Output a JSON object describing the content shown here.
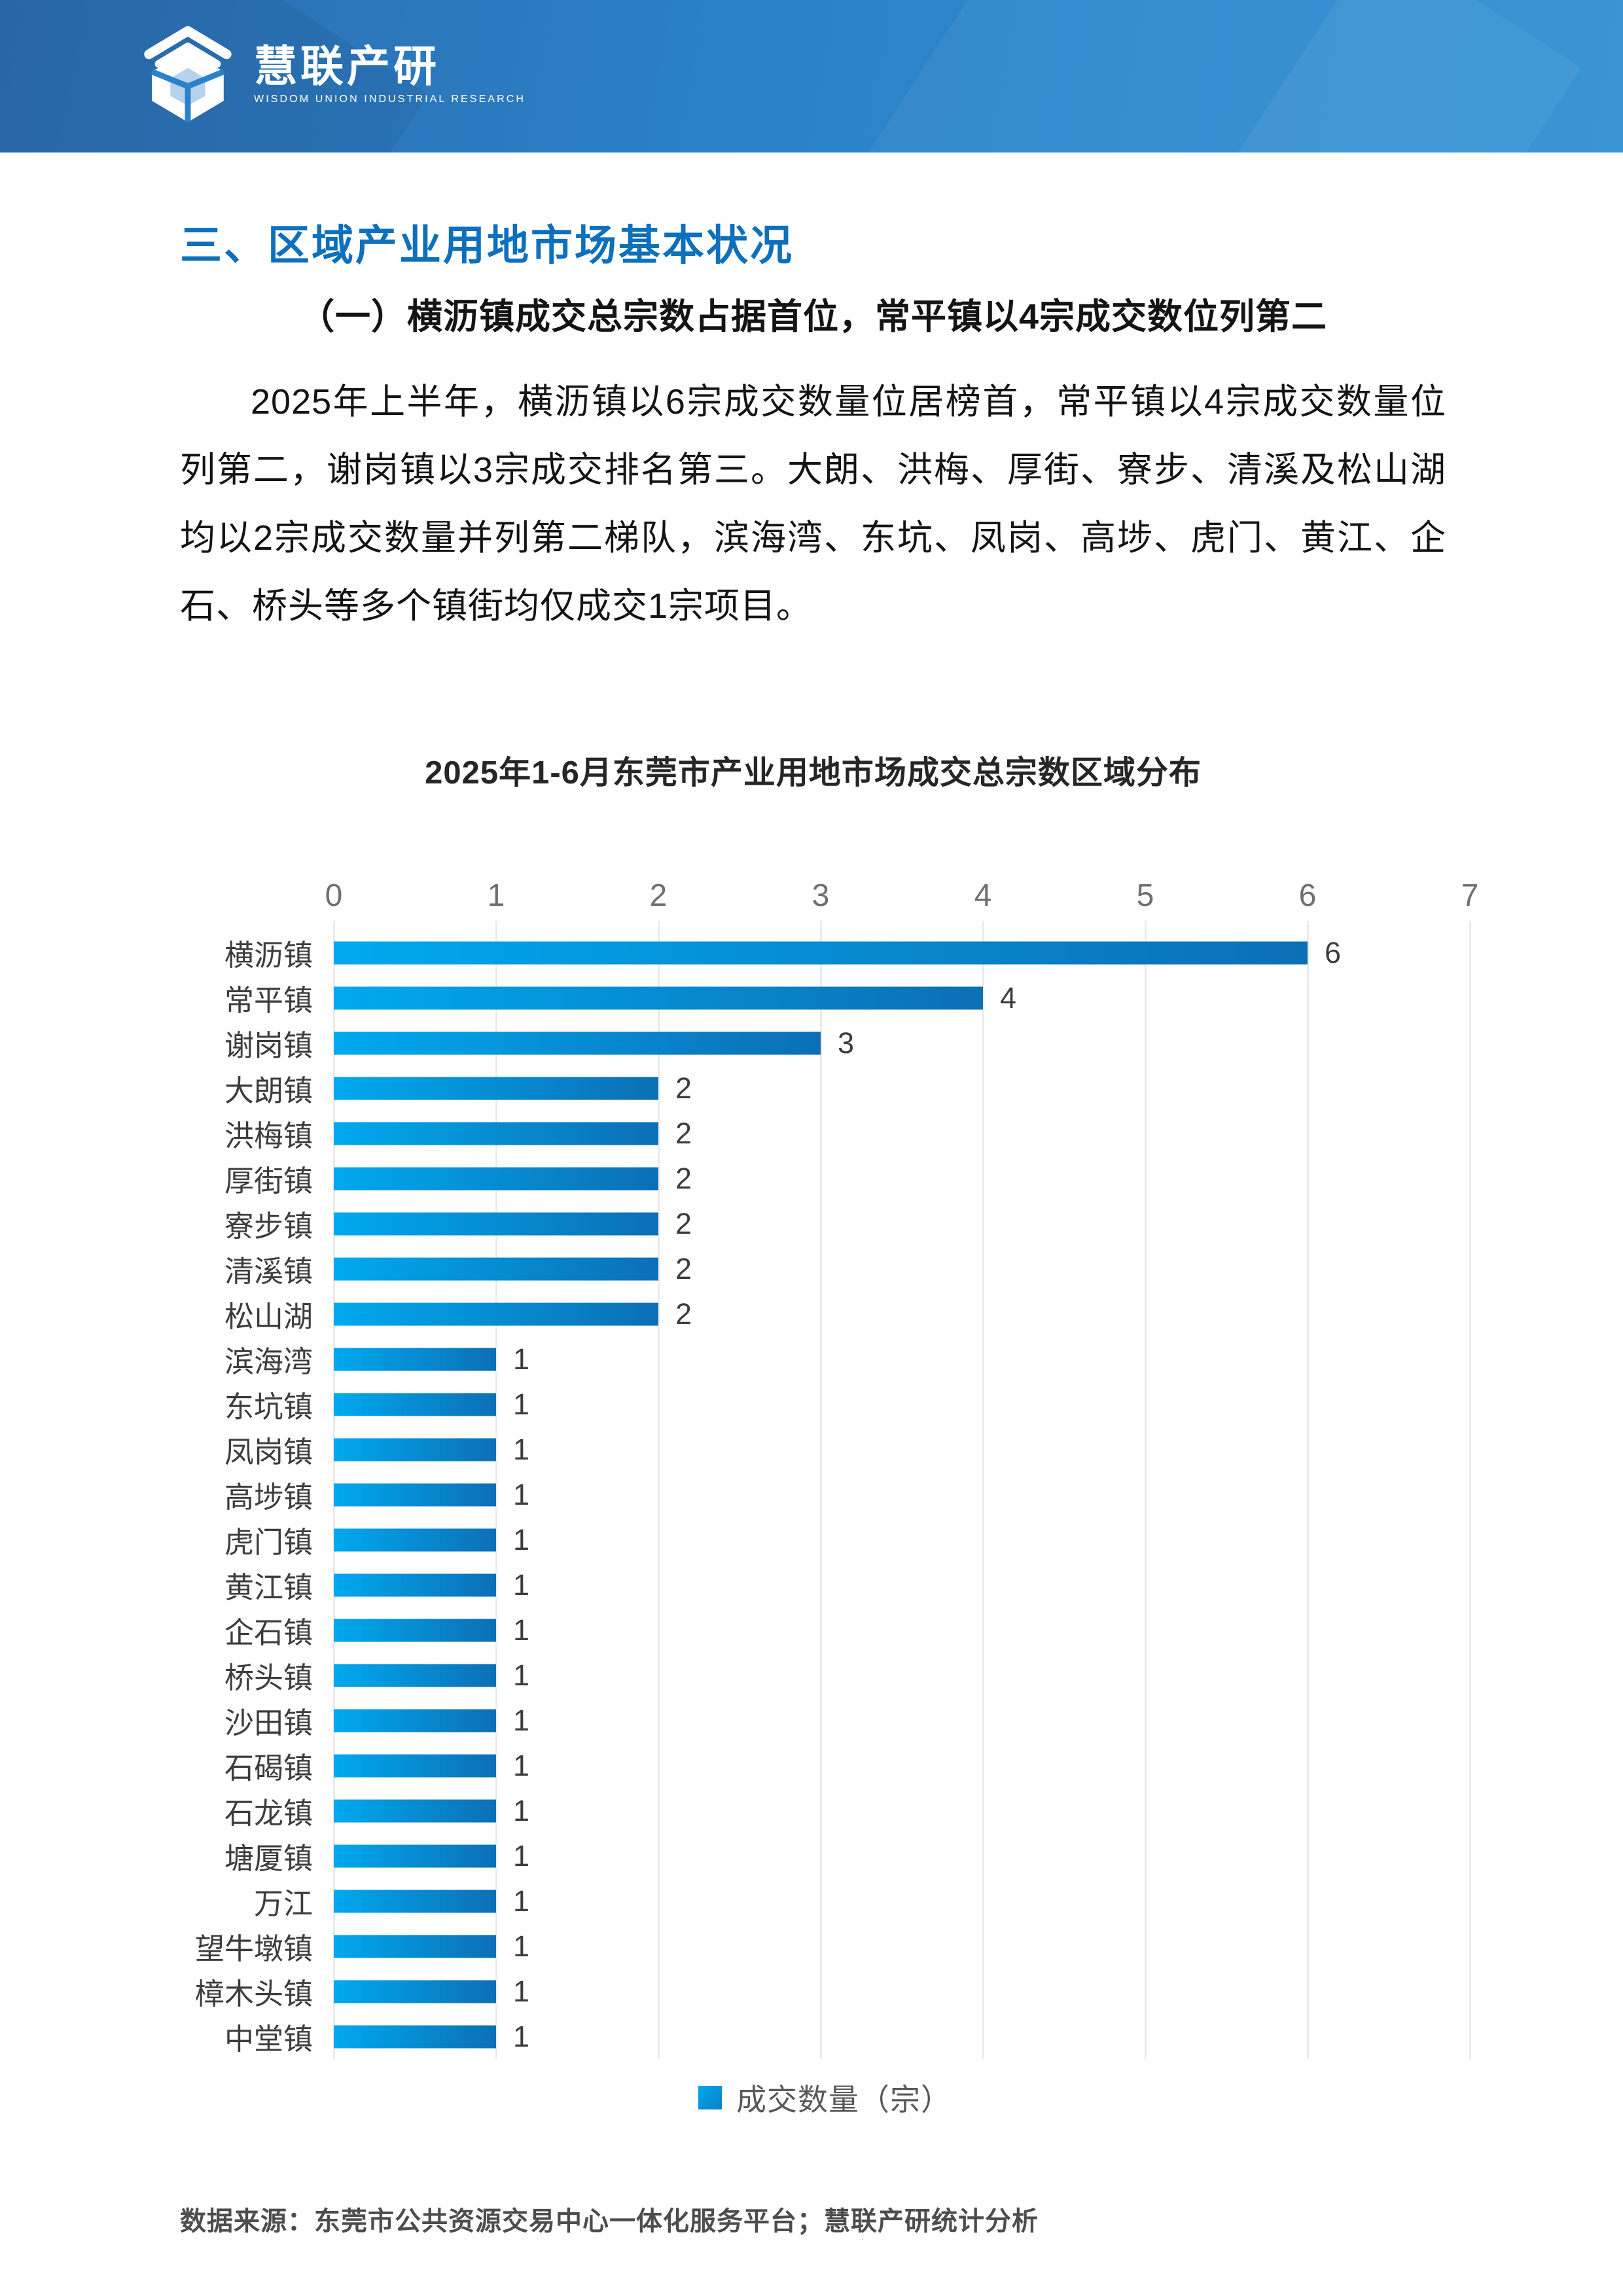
{
  "header": {
    "brand_name": "慧联产研",
    "brand_tagline": "WISDOM UNION INDUSTRIAL RESEARCH"
  },
  "section": {
    "title": "三、区域产业用地市场基本状况",
    "subtitle": "（一）横沥镇成交总宗数占据首位，常平镇以4宗成交数位列第二",
    "paragraph": "2025年上半年，横沥镇以6宗成交数量位居榜首，常平镇以4宗成交数量位列第二，谢岗镇以3宗成交排名第三。大朗、洪梅、厚街、寮步、清溪及松山湖均以2宗成交数量并列第二梯队，滨海湾、东坑、凤岗、高埗、虎门、黄江、企石、桥头等多个镇街均仅成交1宗项目。"
  },
  "chart_data": {
    "type": "bar",
    "orientation": "horizontal",
    "title": "2025年1-6月东莞市产业用地市场成交总宗数区域分布",
    "legend_label": "成交数量（宗）",
    "legend_position": "bottom",
    "grid": true,
    "xlim": [
      0,
      7
    ],
    "x_ticks": [
      0,
      1,
      2,
      3,
      4,
      5,
      6,
      7
    ],
    "categories": [
      "横沥镇",
      "常平镇",
      "谢岗镇",
      "大朗镇",
      "洪梅镇",
      "厚街镇",
      "寮步镇",
      "清溪镇",
      "松山湖",
      "滨海湾",
      "东坑镇",
      "凤岗镇",
      "高埗镇",
      "虎门镇",
      "黄江镇",
      "企石镇",
      "桥头镇",
      "沙田镇",
      "石碣镇",
      "石龙镇",
      "塘厦镇",
      "万江",
      "望牛墩镇",
      "樟木头镇",
      "中堂镇"
    ],
    "values": [
      6,
      4,
      3,
      2,
      2,
      2,
      2,
      2,
      2,
      1,
      1,
      1,
      1,
      1,
      1,
      1,
      1,
      1,
      1,
      1,
      1,
      1,
      1,
      1,
      1
    ]
  },
  "footer": {
    "source": "数据来源：东莞市公共资源交易中心一体化服务平台；慧联产研统计分析"
  },
  "colors": {
    "header_blue": "#2b82c8",
    "title_blue": "#0d70bc",
    "bar_gradient_start": "#00a9ee",
    "bar_gradient_end": "#0c6fb6",
    "gridline": "#ebebeb",
    "tick_label": "#6f6f6f",
    "axis_text": "#3d3d3d"
  }
}
